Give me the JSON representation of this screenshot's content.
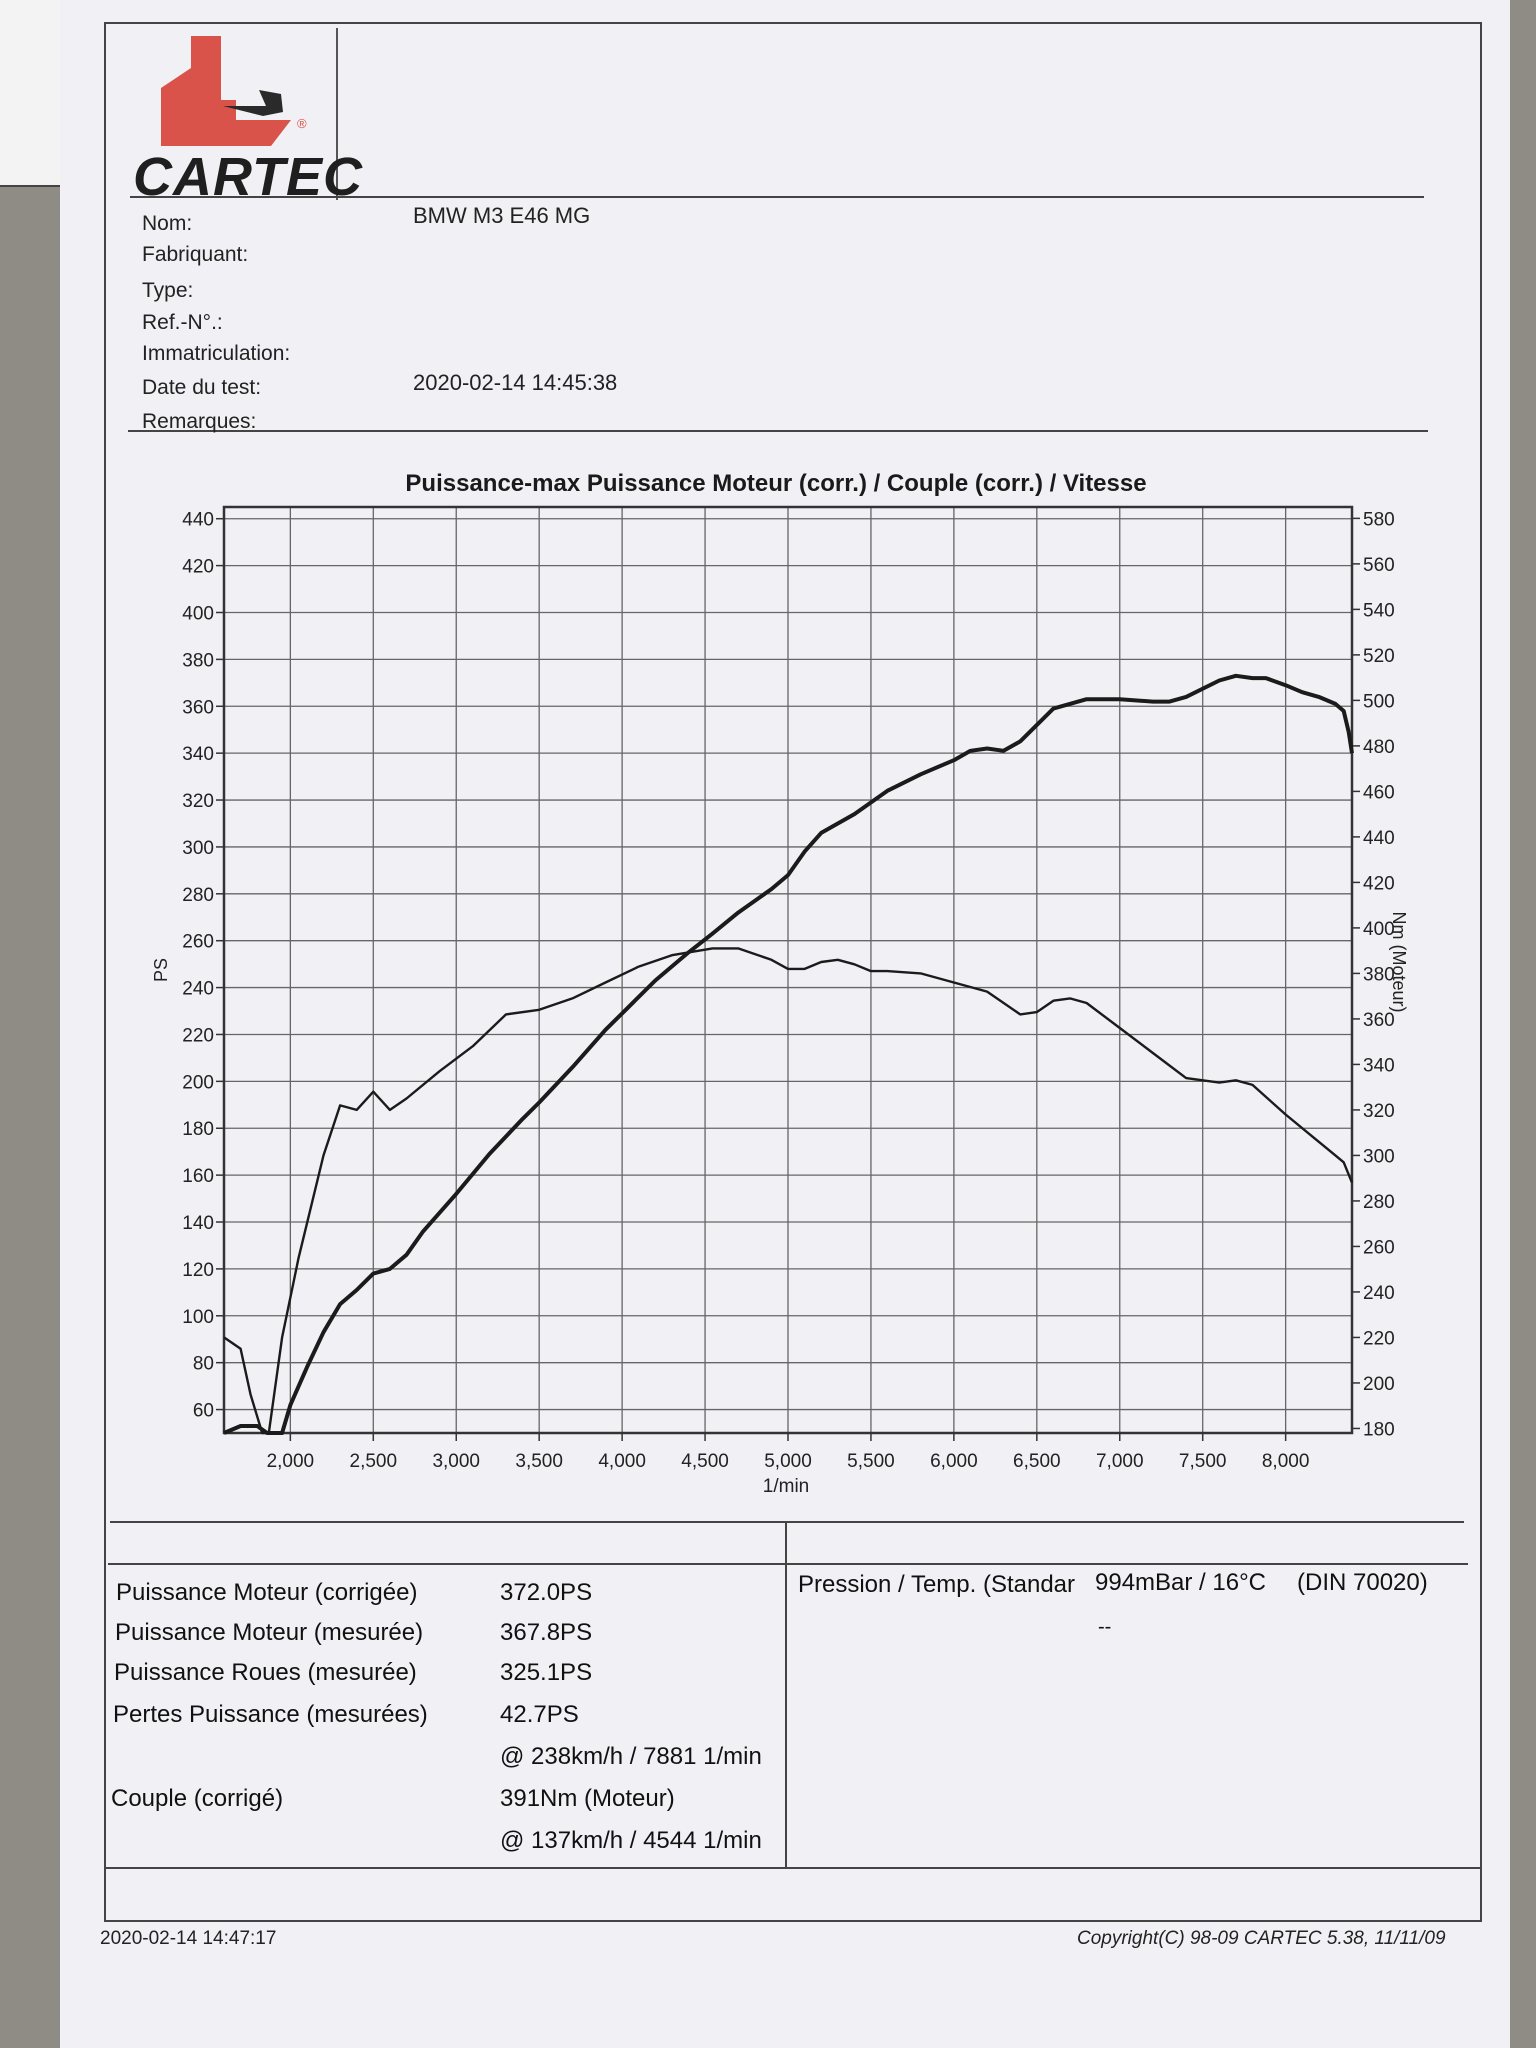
{
  "logo": {
    "text": "CARTEC"
  },
  "fields": [
    {
      "label": "Nom:",
      "value": "BMW M3 E46 MG"
    },
    {
      "label": "Fabriquant:",
      "value": ""
    },
    {
      "label": "Type:",
      "value": ""
    },
    {
      "label": "Ref.-N°.:",
      "value": ""
    },
    {
      "label": "Immatriculation:",
      "value": ""
    },
    {
      "label": "Date du test:",
      "value": "2020-02-14 14:45:38"
    },
    {
      "label": "Remarques:",
      "value": ""
    }
  ],
  "chart_data": {
    "type": "line",
    "title": "Puissance-max Puissance Moteur (corr.) / Couple (corr.) / Vitesse",
    "xlabel": "1/min",
    "ylabel": "PS",
    "y2label": "Nm (Moteur)",
    "xlim": [
      1600,
      8400
    ],
    "ylim": [
      50,
      445
    ],
    "y2lim": [
      178,
      585
    ],
    "x_ticks": [
      2000,
      2500,
      3000,
      3500,
      4000,
      4500,
      5000,
      5500,
      6000,
      6500,
      7000,
      7500,
      8000
    ],
    "x_tick_labels": [
      "2,000",
      "2,500",
      "3,000",
      "3,500",
      "4,000",
      "4,500",
      "5,000",
      "5,500",
      "6,000",
      "6,500",
      "7,000",
      "7,500",
      "8,000"
    ],
    "y_ticks": [
      60,
      80,
      100,
      120,
      140,
      160,
      180,
      200,
      220,
      240,
      260,
      280,
      300,
      320,
      340,
      360,
      380,
      400,
      420,
      440
    ],
    "y2_ticks": [
      180,
      200,
      220,
      240,
      260,
      280,
      300,
      320,
      340,
      360,
      380,
      400,
      420,
      440,
      460,
      480,
      500,
      520,
      540,
      560,
      580
    ],
    "grid": true,
    "series": [
      {
        "axis": "left",
        "x": [
          1600,
          1700,
          1800,
          1860,
          1950,
          2000,
          2100,
          2200,
          2300,
          2400,
          2500,
          2600,
          2700,
          2800,
          3000,
          3200,
          3400,
          3500,
          3700,
          3900,
          4000,
          4200,
          4400,
          4544,
          4700,
          4900,
          5000,
          5100,
          5200,
          5400,
          5600,
          5800,
          6000,
          6100,
          6200,
          6300,
          6400,
          6600,
          6800,
          7000,
          7200,
          7300,
          7400,
          7600,
          7700,
          7800,
          7881,
          8000,
          8100,
          8200,
          8300,
          8350,
          8380,
          8400
        ],
        "y": [
          50,
          53,
          53,
          50,
          50,
          62,
          78,
          93,
          105,
          111,
          118,
          120,
          126,
          136,
          152,
          169,
          184,
          191,
          206,
          222,
          229,
          243,
          255,
          263,
          272,
          282,
          288,
          298,
          306,
          314,
          324,
          331,
          337,
          341,
          342,
          341,
          345,
          359,
          363,
          363,
          362,
          362,
          364,
          371,
          373,
          372,
          372,
          369,
          366,
          364,
          361,
          358,
          349,
          340
        ]
      },
      {
        "axis": "right",
        "x": [
          1600,
          1700,
          1760,
          1830,
          1870,
          1950,
          2050,
          2100,
          2200,
          2300,
          2400,
          2500,
          2600,
          2700,
          2900,
          3100,
          3300,
          3500,
          3700,
          3900,
          4100,
          4300,
          4544,
          4700,
          4900,
          5000,
          5100,
          5200,
          5300,
          5400,
          5500,
          5600,
          5800,
          6000,
          6200,
          6400,
          6500,
          6600,
          6700,
          6800,
          7000,
          7200,
          7400,
          7600,
          7700,
          7800,
          8000,
          8200,
          8300,
          8350,
          8400
        ],
        "y": [
          220,
          215,
          195,
          178,
          178,
          220,
          255,
          270,
          300,
          322,
          320,
          328,
          320,
          325,
          337,
          348,
          362,
          364,
          369,
          376,
          383,
          388,
          391,
          391,
          386,
          382,
          382,
          385,
          386,
          384,
          381,
          381,
          380,
          376,
          372,
          362,
          363,
          368,
          369,
          367,
          356,
          345,
          334,
          332,
          333,
          331,
          318,
          306,
          300,
          297,
          288
        ]
      }
    ]
  },
  "results": [
    {
      "label": "Puissance Moteur (corrigée)",
      "value": "372.0PS"
    },
    {
      "label": "Puissance Moteur (mesurée)",
      "value": "367.8PS"
    },
    {
      "label": "Puissance Roues (mesurée)",
      "value": "325.1PS"
    },
    {
      "label": "Pertes Puissance (mesurées)",
      "value": "42.7PS"
    },
    {
      "label": "",
      "value": "@ 238km/h / 7881 1/min"
    },
    {
      "label": "Couple (corrigé)",
      "value": "391Nm (Moteur)"
    },
    {
      "label": "",
      "value": "@ 137km/h / 4544 1/min"
    }
  ],
  "conditions": {
    "label": "Pression / Temp. (Standar",
    "value": "994mBar / 16°C",
    "norm": "(DIN 70020)",
    "extra": "--"
  },
  "footer": {
    "printed": "2020-02-14 14:47:17",
    "copyright": "Copyright(C) 98-09 CARTEC 5.38, 11/11/09"
  }
}
